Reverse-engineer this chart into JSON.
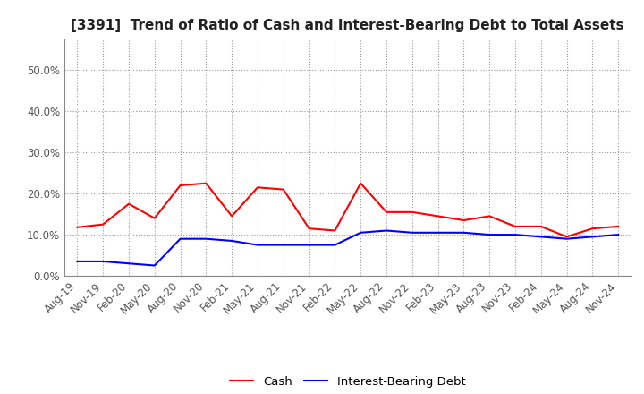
{
  "title": "[3391]  Trend of Ratio of Cash and Interest-Bearing Debt to Total Assets",
  "x_labels": [
    "Aug-19",
    "Nov-19",
    "Feb-20",
    "May-20",
    "Aug-20",
    "Nov-20",
    "Feb-21",
    "May-21",
    "Aug-21",
    "Nov-21",
    "Feb-22",
    "May-22",
    "Aug-22",
    "Nov-22",
    "Feb-23",
    "May-23",
    "Aug-23",
    "Nov-23",
    "Feb-24",
    "May-24",
    "Aug-24",
    "Nov-24"
  ],
  "cash": [
    0.118,
    0.125,
    0.175,
    0.14,
    0.22,
    0.225,
    0.145,
    0.215,
    0.21,
    0.115,
    0.11,
    0.225,
    0.155,
    0.155,
    0.145,
    0.135,
    0.145,
    0.12,
    0.12,
    0.095,
    0.115,
    0.12
  ],
  "debt": [
    0.035,
    0.035,
    0.03,
    0.025,
    0.09,
    0.09,
    0.085,
    0.075,
    0.075,
    0.075,
    0.075,
    0.105,
    0.11,
    0.105,
    0.105,
    0.105,
    0.1,
    0.1,
    0.095,
    0.09,
    0.095,
    0.1
  ],
  "cash_color": "#ff0000",
  "debt_color": "#0000ff",
  "ylim": [
    0.0,
    0.575
  ],
  "yticks": [
    0.0,
    0.1,
    0.2,
    0.3,
    0.4,
    0.5
  ],
  "background_color": "#ffffff",
  "plot_bg_color": "#ffffff",
  "grid_color": "#999999",
  "legend_cash": "Cash",
  "legend_debt": "Interest-Bearing Debt",
  "title_fontsize": 11,
  "tick_fontsize": 8.5
}
